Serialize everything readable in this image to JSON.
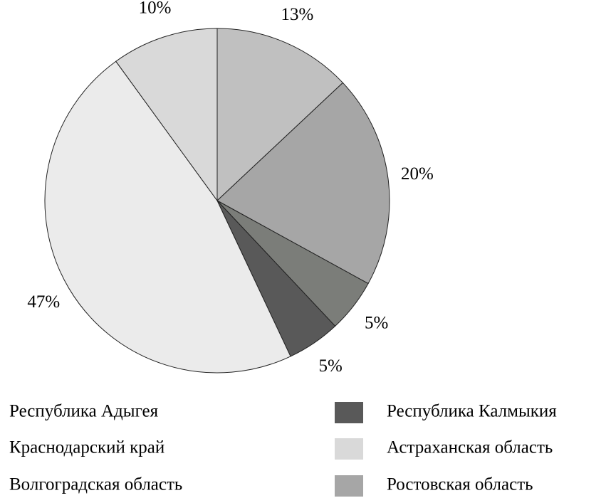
{
  "chart_data": {
    "type": "pie",
    "categories": [
      "Волгоградская область",
      "Ростовская область",
      "Республика Адыгея",
      "Республика Калмыкия",
      "Краснодарский край",
      "Астраханская область"
    ],
    "values": [
      13,
      20,
      5,
      5,
      47,
      10
    ],
    "value_labels": [
      "13%",
      "20%",
      "5%",
      "5%",
      "47%",
      "10%"
    ],
    "colors": [
      "#c0c0c0",
      "#a6a6a6",
      "#7b7d79",
      "#595959",
      "#ebebeb",
      "#d9d9d9"
    ]
  }
}
